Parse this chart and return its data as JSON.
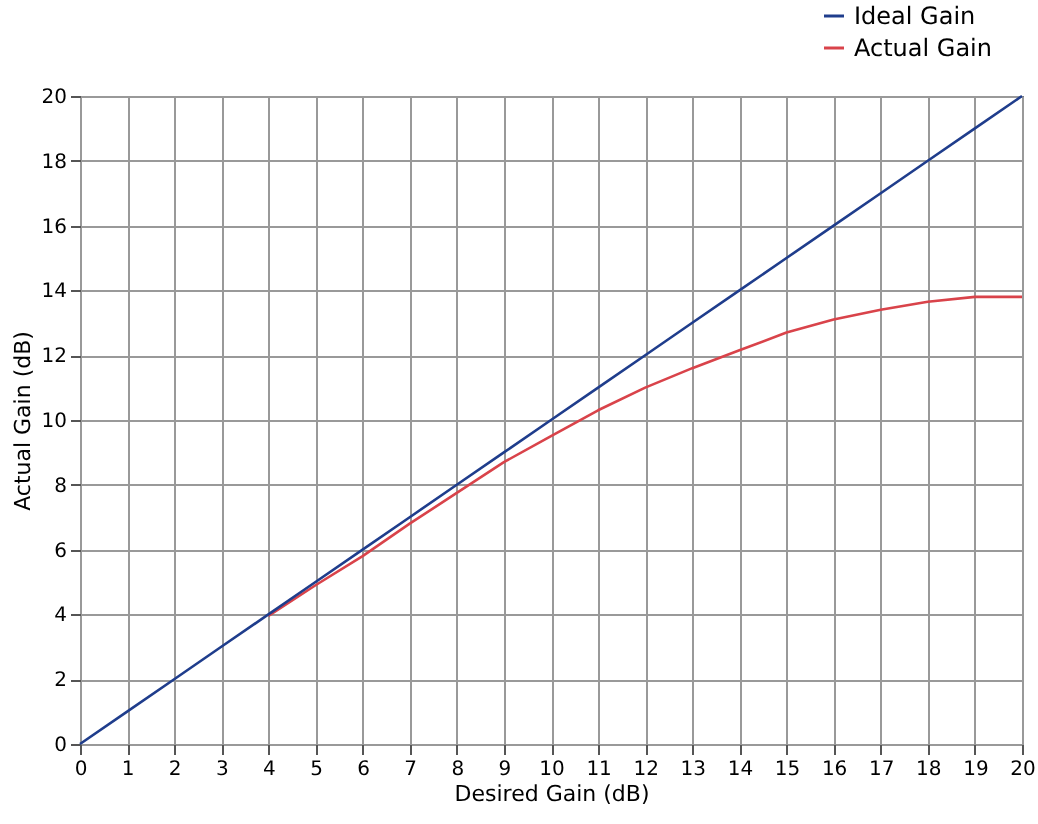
{
  "chart_data": {
    "type": "line",
    "xlabel": "Desired Gain (dB)",
    "ylabel": "Actual Gain (dB)",
    "x": [
      0,
      1,
      2,
      3,
      4,
      5,
      6,
      7,
      8,
      9,
      10,
      11,
      12,
      13,
      14,
      15,
      16,
      17,
      18,
      19,
      20
    ],
    "series": [
      {
        "name": "Ideal Gain",
        "color": "#1f3d8c",
        "values": [
          0,
          1,
          2,
          3,
          4,
          5,
          6,
          7,
          8,
          9,
          10,
          11,
          12,
          13,
          14,
          15,
          16,
          17,
          18,
          19,
          20
        ]
      },
      {
        "name": "Actual Gain",
        "color": "#d9434a",
        "values": [
          null,
          null,
          null,
          null,
          3.95,
          4.9,
          5.8,
          6.8,
          7.75,
          8.7,
          9.5,
          10.3,
          11,
          11.6,
          12.15,
          12.7,
          13.1,
          13.4,
          13.65,
          13.8,
          13.8
        ]
      }
    ],
    "xlim": [
      0,
      20
    ],
    "ylim": [
      0,
      20
    ],
    "xticks": [
      0,
      1,
      2,
      3,
      4,
      5,
      6,
      7,
      8,
      9,
      10,
      11,
      12,
      13,
      14,
      15,
      16,
      17,
      18,
      19,
      20
    ],
    "yticks": [
      0,
      2,
      4,
      6,
      8,
      10,
      12,
      14,
      16,
      18,
      20
    ],
    "grid": true,
    "legend": "top right",
    "marker": "none",
    "line_style": "solid"
  }
}
